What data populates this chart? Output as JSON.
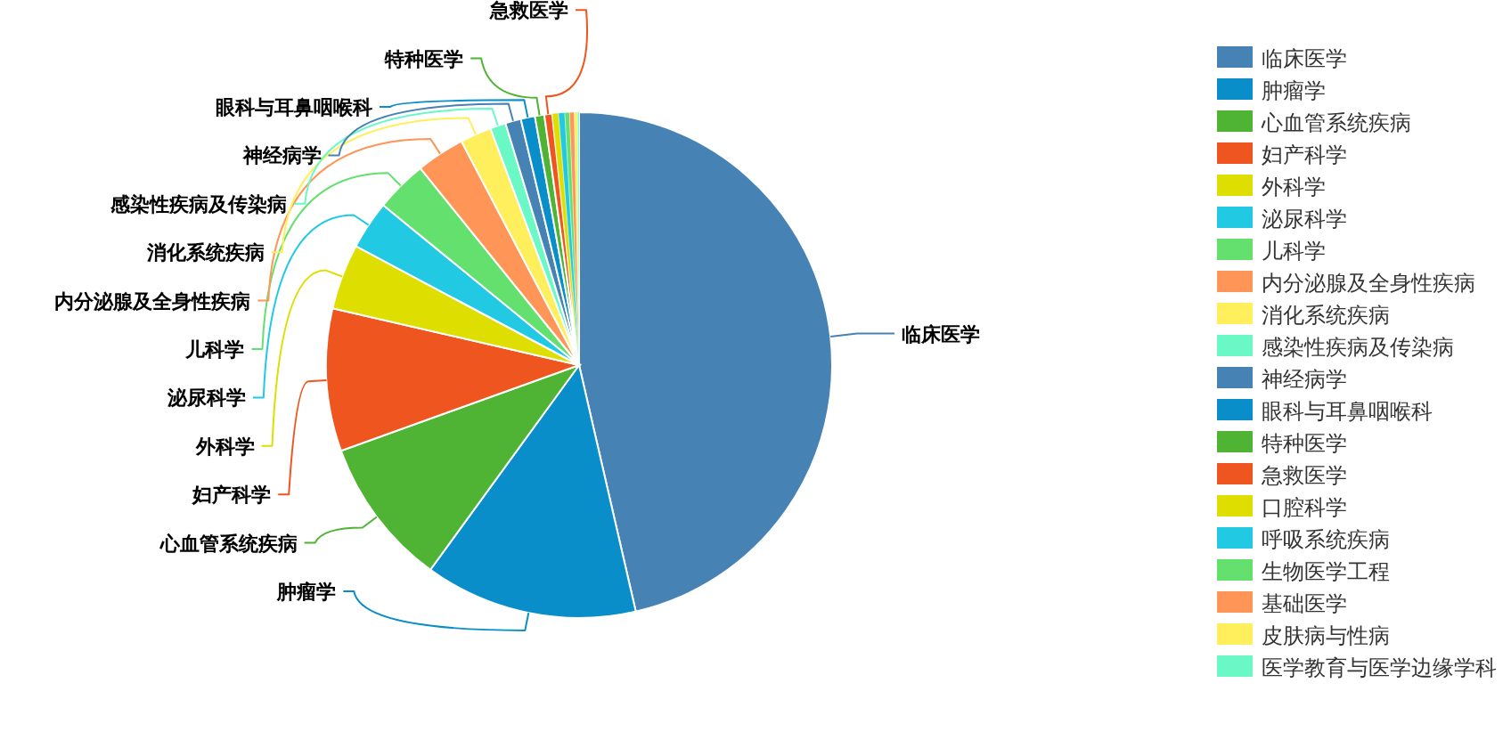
{
  "chart_data": {
    "type": "pie",
    "categories": [
      "临床医学",
      "肿瘤学",
      "心血管系统疾病",
      "妇产科学",
      "外科学",
      "泌尿科学",
      "儿科学",
      "内分泌腺及全身性疾病",
      "消化系统疾病",
      "感染性疾病及传染病",
      "神经病学",
      "眼科与耳鼻咽喉科",
      "特种医学",
      "急救医学",
      "口腔科学",
      "呼吸系统疾病",
      "生物医学工程",
      "基础医学",
      "皮肤病与性病",
      "医学教育与医学边缘学科"
    ],
    "values": [
      46.4,
      13.6,
      9.5,
      9.1,
      4.2,
      3.1,
      3.3,
      3.1,
      2.0,
      1.0,
      1.0,
      0.9,
      0.6,
      0.5,
      0.4,
      0.4,
      0.3,
      0.3,
      0.2,
      0.1
    ],
    "colors": [
      "#4682b4",
      "#098ec9",
      "#4fb434",
      "#ef561f",
      "#dede00",
      "#22c9e3",
      "#63e06e",
      "#ff9557",
      "#ffef5d",
      "#69f8c6",
      "#4682b4",
      "#098ec9",
      "#4fb434",
      "#ef561f",
      "#dede00",
      "#22c9e3",
      "#63e06e",
      "#ff9557",
      "#ffef5d",
      "#69f8c6"
    ],
    "legend": "right"
  }
}
